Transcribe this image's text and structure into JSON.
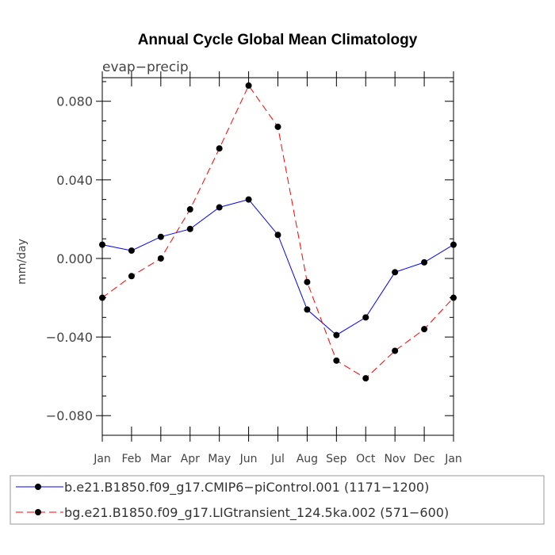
{
  "chart_data": {
    "type": "line",
    "title": "Annual Cycle Global Mean Climatology",
    "subtitle": "evap−precip",
    "xlabel": "",
    "ylabel": "mm/day",
    "categories": [
      "Jan",
      "Feb",
      "Mar",
      "Apr",
      "May",
      "Jun",
      "Jul",
      "Aug",
      "Sep",
      "Oct",
      "Nov",
      "Dec",
      "Jan"
    ],
    "ylim": [
      -0.09,
      0.092
    ],
    "yticks": [
      0.08,
      0.04,
      0.0,
      -0.04,
      -0.08
    ],
    "ytick_labels": [
      "0.080",
      "0.040",
      "0.000",
      "−0.040",
      "−0.080"
    ],
    "grid": false,
    "legend_position": "bottom",
    "series": [
      {
        "name": "b.e21.B1850.f09_g17.CMIP6−piControl.001 (1171−1200)",
        "color": "#0000ff",
        "dash": "solid",
        "values": [
          0.007,
          0.004,
          0.011,
          0.015,
          0.026,
          0.03,
          0.012,
          -0.026,
          -0.039,
          -0.03,
          -0.007,
          -0.002,
          0.007
        ]
      },
      {
        "name": "bg.e21.B1850.f09_g17.LIGtransient_124.5ka.002 (571−600)",
        "color": "#ff0000",
        "dash": "dashed",
        "values": [
          -0.02,
          -0.009,
          0.0,
          0.025,
          0.056,
          0.088,
          0.067,
          -0.012,
          -0.052,
          -0.061,
          -0.047,
          -0.036,
          -0.02
        ]
      }
    ]
  }
}
